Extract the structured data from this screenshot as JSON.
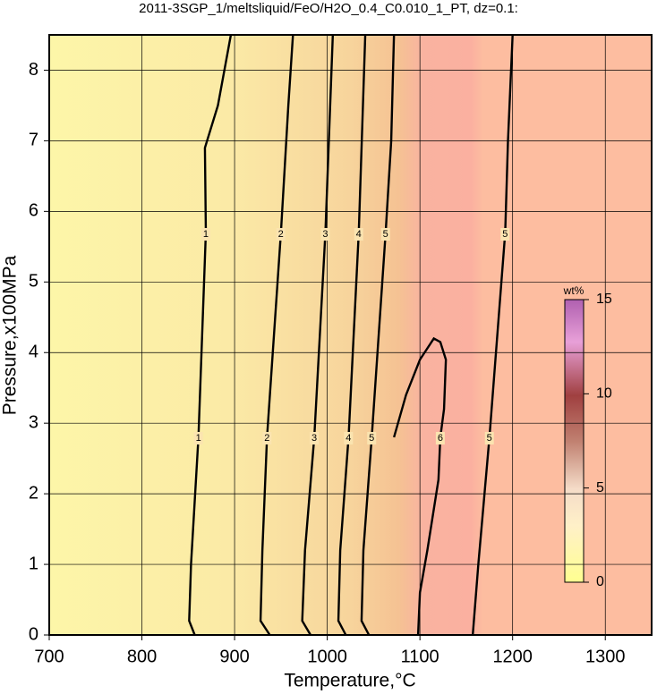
{
  "chart_data": {
    "type": "contour",
    "title": "2011-3SGP_1/meltsliquid/FeO/H2O_0.4_C0.010_1_PT, dz=0.1:",
    "xlabel": "Temperature,°C",
    "ylabel": "Pressure,x100MPa",
    "xlim": [
      700,
      1350
    ],
    "xticks": [
      700,
      800,
      900,
      1000,
      1100,
      1200,
      1300
    ],
    "ylim": [
      0,
      8.5
    ],
    "yticks": [
      0,
      1,
      2,
      3,
      4,
      5,
      6,
      7,
      8
    ],
    "grid": true,
    "contours": [
      {
        "level": 1,
        "T": [
          857,
          851,
          853,
          861,
          869,
          868,
          882,
          896
        ],
        "P": [
          0,
          0.2,
          1,
          2.8,
          5.7,
          6.9,
          7.5,
          8.5
        ]
      },
      {
        "level": 2,
        "T": [
          938,
          928,
          930,
          935,
          950,
          958,
          963
        ],
        "P": [
          0,
          0.2,
          1.2,
          2.8,
          5.7,
          7.5,
          8.5
        ]
      },
      {
        "level": 3,
        "T": [
          982,
          973,
          976,
          986,
          998,
          1006
        ],
        "P": [
          0,
          0.2,
          1.2,
          2.8,
          5.7,
          8.5
        ]
      },
      {
        "level": 4,
        "T": [
          1020,
          1012,
          1014,
          1023,
          1034,
          1041
        ],
        "P": [
          0,
          0.2,
          1.2,
          2.8,
          5.7,
          8.5
        ]
      },
      {
        "level": 5,
        "T": [
          1045,
          1037,
          1039,
          1048,
          1063,
          1069,
          1072
        ],
        "P": [
          0,
          0.2,
          1.2,
          2.8,
          5.7,
          7,
          8.5
        ]
      },
      {
        "level": 6,
        "T": [
          1072,
          1085,
          1100,
          1115,
          1122,
          1128,
          1126,
          1122,
          1120,
          1108,
          1100,
          1098
        ],
        "P": [
          2.8,
          3.4,
          3.9,
          4.2,
          4.15,
          3.9,
          3.2,
          2.8,
          2.2,
          1.2,
          0.6,
          0
        ]
      },
      {
        "level": 5,
        "T": [
          1157,
          1163,
          1175,
          1192,
          1195,
          1200
        ],
        "P": [
          0,
          1,
          2.8,
          5.7,
          7,
          8.5
        ]
      }
    ],
    "colorbar": {
      "label": "wt%",
      "lim": [
        0,
        15
      ],
      "ticks": [
        0,
        5,
        10,
        15
      ]
    }
  }
}
